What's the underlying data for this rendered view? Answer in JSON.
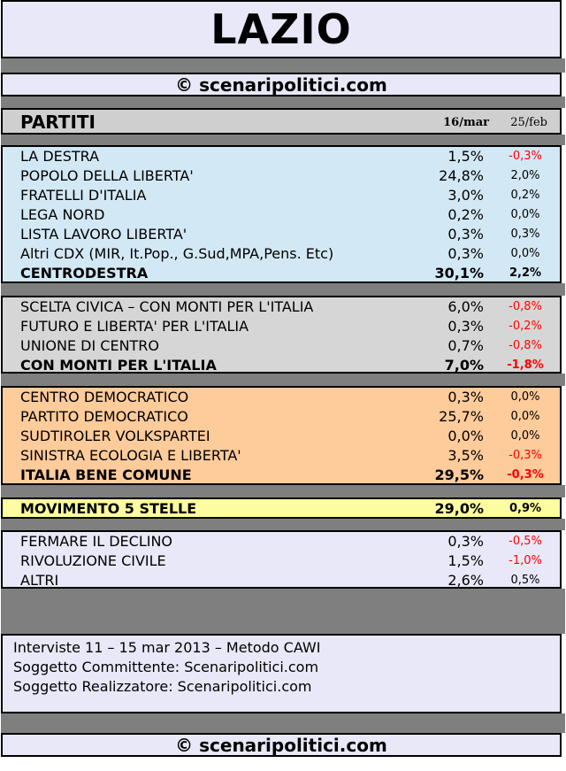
{
  "title": "LAZIO",
  "brand": "© scenaripolitici.com",
  "header": {
    "label": "PARTITI",
    "col1": "16/mar",
    "col2": "25/feb"
  },
  "chart_data": {
    "type": "table",
    "columns": [
      "PARTITI",
      "16/mar",
      "25/feb"
    ],
    "groups": [
      {
        "color": "#d3e8f5",
        "rows": [
          {
            "name": "LA DESTRA",
            "v1": "1,5%",
            "v2": "-0,3%",
            "neg": true
          },
          {
            "name": "POPOLO DELLA LIBERTA'",
            "v1": "24,8%",
            "v2": "2,0%",
            "neg": false
          },
          {
            "name": "FRATELLI D'ITALIA",
            "v1": "3,0%",
            "v2": "0,2%",
            "neg": false
          },
          {
            "name": "LEGA NORD",
            "v1": "0,2%",
            "v2": "0,0%",
            "neg": false
          },
          {
            "name": "LISTA LAVORO LIBERTA'",
            "v1": "0,3%",
            "v2": "0,3%",
            "neg": false
          },
          {
            "name": "Altri CDX (MIR, It.Pop., G.Sud,MPA,Pens. Etc)",
            "v1": "0,3%",
            "v2": "0,0%",
            "neg": false
          },
          {
            "name": "CENTRODESTRA",
            "v1": "30,1%",
            "v2": "2,2%",
            "neg": false,
            "total": true
          }
        ]
      },
      {
        "color": "#d6d6d6",
        "rows": [
          {
            "name": "SCELTA CIVICA – CON MONTI PER L'ITALIA",
            "v1": "6,0%",
            "v2": "-0,8%",
            "neg": true
          },
          {
            "name": "FUTURO E LIBERTA' PER L'ITALIA",
            "v1": "0,3%",
            "v2": "-0,2%",
            "neg": true
          },
          {
            "name": "UNIONE DI CENTRO",
            "v1": "0,7%",
            "v2": "-0,8%",
            "neg": true
          },
          {
            "name": "CON MONTI PER L'ITALIA",
            "v1": "7,0%",
            "v2": "-1,8%",
            "neg": true,
            "total": true
          }
        ]
      },
      {
        "color": "#fecb9b",
        "rows": [
          {
            "name": "CENTRO DEMOCRATICO",
            "v1": "0,3%",
            "v2": "0,0%",
            "neg": false
          },
          {
            "name": "PARTITO DEMOCRATICO",
            "v1": "25,7%",
            "v2": "0,0%",
            "neg": false
          },
          {
            "name": "SUDTIROLER VOLKSPARTEI",
            "v1": "0,0%",
            "v2": "0,0%",
            "neg": false
          },
          {
            "name": "SINISTRA ECOLOGIA E LIBERTA'",
            "v1": "3,5%",
            "v2": "-0,3%",
            "neg": true
          },
          {
            "name": "ITALIA BENE COMUNE",
            "v1": "29,5%",
            "v2": "-0,3%",
            "neg": true,
            "total": true
          }
        ]
      },
      {
        "color": "#fcfca0",
        "rows": [
          {
            "name": "MOVIMENTO 5 STELLE",
            "v1": "29,0%",
            "v2": "0,9%",
            "neg": false,
            "total": true
          }
        ]
      },
      {
        "color": "#e8e8f8",
        "rows": [
          {
            "name": "FERMARE IL DECLINO",
            "v1": "0,3%",
            "v2": "-0,5%",
            "neg": true
          },
          {
            "name": "RIVOLUZIONE CIVILE",
            "v1": "1,5%",
            "v2": "-1,0%",
            "neg": true
          },
          {
            "name": "ALTRI",
            "v1": "2,6%",
            "v2": "0,5%",
            "neg": false
          }
        ]
      }
    ]
  },
  "notes": [
    "Interviste 11 – 15 mar 2013 – Metodo CAWI",
    "Soggetto Committente: Scenaripolitici.com",
    "Soggetto Realizzatore: Scenaripolitici.com"
  ]
}
